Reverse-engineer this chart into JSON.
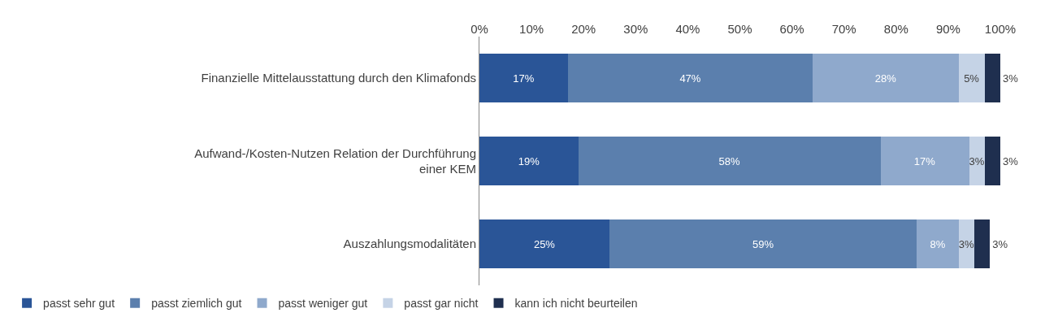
{
  "chart_data": {
    "type": "bar",
    "orientation": "horizontal",
    "stacked": true,
    "categories": [
      "Finanzielle Mittelausstattung durch den Klimafonds",
      "Aufwand-/Kosten-Nutzen Relation der Durchführung einer KEM",
      "Auszahlungsmodalitäten"
    ],
    "series": [
      {
        "name": "passt sehr gut",
        "color": "#2a5597",
        "values": [
          17,
          19,
          25
        ],
        "value_labels": [
          "17%",
          "19%",
          "25%"
        ]
      },
      {
        "name": "passt ziemlich gut",
        "color": "#5b7fad",
        "values": [
          47,
          58,
          59
        ],
        "value_labels": [
          "47%",
          "58%",
          "59%"
        ]
      },
      {
        "name": "passt weniger gut",
        "color": "#8fa9cc",
        "values": [
          28,
          17,
          8
        ],
        "value_labels": [
          "28%",
          "17%",
          "8%"
        ]
      },
      {
        "name": "passt gar nicht",
        "color": "#c5d3e6",
        "values": [
          5,
          3,
          3
        ],
        "value_labels": [
          "5%",
          "3%",
          "3%"
        ]
      },
      {
        "name": "kann ich nicht beurteilen",
        "color": "#1f2f4f",
        "values": [
          3,
          3,
          3
        ],
        "value_labels": [
          "3%",
          "3%",
          "3%"
        ]
      }
    ],
    "xlim": [
      0,
      100
    ],
    "xticks": [
      {
        "value": 0,
        "label": "0%"
      },
      {
        "value": 10,
        "label": "10%"
      },
      {
        "value": 20,
        "label": "20%"
      },
      {
        "value": 30,
        "label": "30%"
      },
      {
        "value": 40,
        "label": "40%"
      },
      {
        "value": 50,
        "label": "50%"
      },
      {
        "value": 60,
        "label": "60%"
      },
      {
        "value": 70,
        "label": "70%"
      },
      {
        "value": 80,
        "label": "80%"
      },
      {
        "value": 90,
        "label": "90%"
      },
      {
        "value": 100,
        "label": "100%"
      }
    ],
    "grid": false,
    "legend": "bottom"
  }
}
